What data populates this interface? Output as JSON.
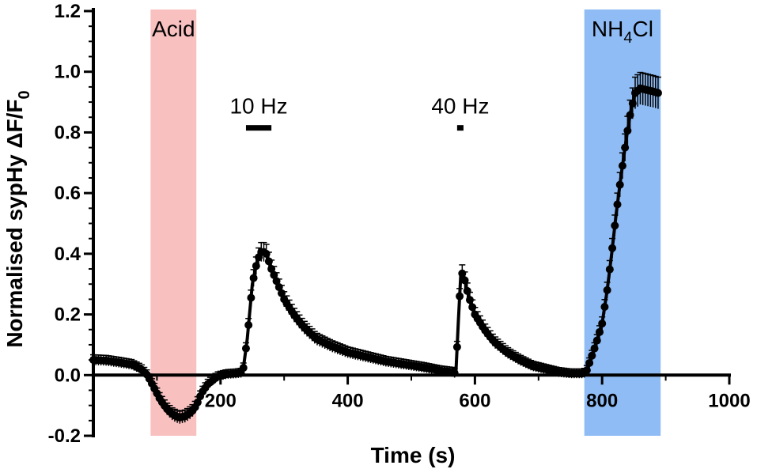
{
  "chart_data": {
    "type": "line",
    "title": "",
    "xlabel": "Time (s)",
    "ylabel_main": "Normalised sypHy ΔF/F",
    "ylabel_sub": "0",
    "xlim": [
      0,
      1000
    ],
    "ylim": [
      -0.2,
      1.2
    ],
    "x_ticks": [
      200,
      400,
      600,
      800,
      1000
    ],
    "x_tick_labels": [
      "200",
      "400",
      "600",
      "800",
      "1000"
    ],
    "y_ticks": [
      -0.2,
      0.0,
      0.2,
      0.4,
      0.6,
      0.8,
      1.0,
      1.2
    ],
    "y_tick_labels": [
      "-0.2",
      "0.0",
      "0.2",
      "0.4",
      "0.6",
      "0.8",
      "1.0",
      "1.2"
    ],
    "x_tick_label_overlap_note": "",
    "shaded_regions": [
      {
        "name": "acid-region",
        "label": "Acid",
        "x_start": 90,
        "x_end": 162,
        "color": "#f9c0c0"
      },
      {
        "name": "nh4cl-region",
        "label_main": "NH",
        "label_sub": "4",
        "label_tail": "Cl",
        "x_start": 772,
        "x_end": 892,
        "color": "#8fbcf5"
      }
    ],
    "stimulus_bars": [
      {
        "name": "stim-10hz",
        "label": "10 Hz",
        "x_start": 240,
        "x_end": 280,
        "y": 0.815
      },
      {
        "name": "stim-40hz",
        "label": "40 Hz",
        "x_start": 572,
        "x_end": 582,
        "y": 0.815
      }
    ],
    "series": [
      {
        "name": "sypHy",
        "color": "#000000",
        "error_typical": 0.015,
        "points": [
          [
            0,
            0.05
          ],
          [
            20,
            0.048
          ],
          [
            40,
            0.042
          ],
          [
            60,
            0.035
          ],
          [
            75,
            0.02
          ],
          [
            85,
            0.0
          ],
          [
            95,
            -0.04
          ],
          [
            105,
            -0.08
          ],
          [
            115,
            -0.11
          ],
          [
            125,
            -0.13
          ],
          [
            135,
            -0.14
          ],
          [
            145,
            -0.135
          ],
          [
            155,
            -0.12
          ],
          [
            162,
            -0.1
          ],
          [
            170,
            -0.06
          ],
          [
            180,
            -0.03
          ],
          [
            195,
            -0.005
          ],
          [
            210,
            0.003
          ],
          [
            225,
            0.005
          ],
          [
            235,
            0.008
          ],
          [
            242,
            0.12
          ],
          [
            250,
            0.3
          ],
          [
            258,
            0.38
          ],
          [
            265,
            0.41
          ],
          [
            272,
            0.4
          ],
          [
            280,
            0.35
          ],
          [
            290,
            0.3
          ],
          [
            300,
            0.25
          ],
          [
            315,
            0.2
          ],
          [
            330,
            0.16
          ],
          [
            350,
            0.12
          ],
          [
            375,
            0.095
          ],
          [
            400,
            0.075
          ],
          [
            430,
            0.06
          ],
          [
            460,
            0.045
          ],
          [
            490,
            0.035
          ],
          [
            520,
            0.025
          ],
          [
            545,
            0.015
          ],
          [
            565,
            0.01
          ],
          [
            570,
            0.005
          ],
          [
            574,
            0.18
          ],
          [
            578,
            0.34
          ],
          [
            582,
            0.33
          ],
          [
            590,
            0.26
          ],
          [
            600,
            0.2
          ],
          [
            615,
            0.15
          ],
          [
            630,
            0.11
          ],
          [
            650,
            0.075
          ],
          [
            670,
            0.05
          ],
          [
            690,
            0.03
          ],
          [
            710,
            0.02
          ],
          [
            730,
            0.01
          ],
          [
            750,
            0.005
          ],
          [
            770,
            0.005
          ],
          [
            775,
            0.01
          ],
          [
            780,
            0.04
          ],
          [
            790,
            0.1
          ],
          [
            800,
            0.17
          ],
          [
            808,
            0.28
          ],
          [
            815,
            0.4
          ],
          [
            822,
            0.53
          ],
          [
            830,
            0.66
          ],
          [
            838,
            0.78
          ],
          [
            845,
            0.87
          ],
          [
            852,
            0.93
          ],
          [
            860,
            0.945
          ],
          [
            870,
            0.94
          ],
          [
            880,
            0.935
          ],
          [
            888,
            0.93
          ]
        ]
      }
    ]
  }
}
